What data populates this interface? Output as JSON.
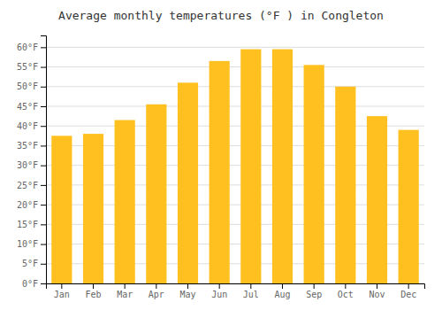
{
  "chart_data": {
    "type": "bar",
    "title": "Average monthly temperatures (°F ) in Congleton",
    "categories": [
      "Jan",
      "Feb",
      "Mar",
      "Apr",
      "May",
      "Jun",
      "Jul",
      "Aug",
      "Sep",
      "Oct",
      "Nov",
      "Dec"
    ],
    "values": [
      37.5,
      38,
      41.5,
      45.5,
      51,
      56.5,
      59.5,
      59.5,
      55.5,
      50,
      42.5,
      39
    ],
    "color": "#FFC020",
    "ylim": [
      0,
      63
    ],
    "yticks": [
      {
        "value": 0,
        "label": "0°F"
      },
      {
        "value": 5,
        "label": "5°F"
      },
      {
        "value": 10,
        "label": "10°F"
      },
      {
        "value": 15,
        "label": "15°F"
      },
      {
        "value": 20,
        "label": "20°F"
      },
      {
        "value": 25,
        "label": "25°F"
      },
      {
        "value": 30,
        "label": "30°F"
      },
      {
        "value": 35,
        "label": "35°F"
      },
      {
        "value": 40,
        "label": "40°F"
      },
      {
        "value": 45,
        "label": "45°F"
      },
      {
        "value": 50,
        "label": "50°F"
      },
      {
        "value": 55,
        "label": "55°F"
      },
      {
        "value": 60,
        "label": "60°F"
      }
    ],
    "grid": true
  }
}
